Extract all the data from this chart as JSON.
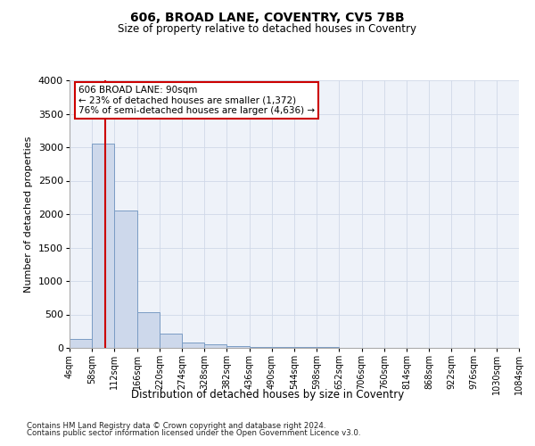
{
  "title": "606, BROAD LANE, COVENTRY, CV5 7BB",
  "subtitle": "Size of property relative to detached houses in Coventry",
  "xlabel": "Distribution of detached houses by size in Coventry",
  "ylabel": "Number of detached properties",
  "bin_edges": [
    4,
    58,
    112,
    166,
    220,
    274,
    328,
    382,
    436,
    490,
    544,
    598,
    652,
    706,
    760,
    814,
    868,
    922,
    976,
    1030,
    1084
  ],
  "bar_heights": [
    130,
    3050,
    2050,
    540,
    210,
    80,
    55,
    30,
    20,
    15,
    10,
    8,
    5,
    3,
    2,
    1,
    1,
    0,
    0,
    0
  ],
  "bar_color": "#cdd8eb",
  "bar_edgecolor": "#7a9cc4",
  "grid_color": "#d0d8e8",
  "background_color": "#eef2f9",
  "red_line_x": 90,
  "annotation_text": "606 BROAD LANE: 90sqm\n← 23% of detached houses are smaller (1,372)\n76% of semi-detached houses are larger (4,636) →",
  "annotation_box_color": "#ffffff",
  "annotation_border_color": "#cc0000",
  "ylim": [
    0,
    4000
  ],
  "yticks": [
    0,
    500,
    1000,
    1500,
    2000,
    2500,
    3000,
    3500,
    4000
  ],
  "footnote1": "Contains HM Land Registry data © Crown copyright and database right 2024.",
  "footnote2": "Contains public sector information licensed under the Open Government Licence v3.0."
}
